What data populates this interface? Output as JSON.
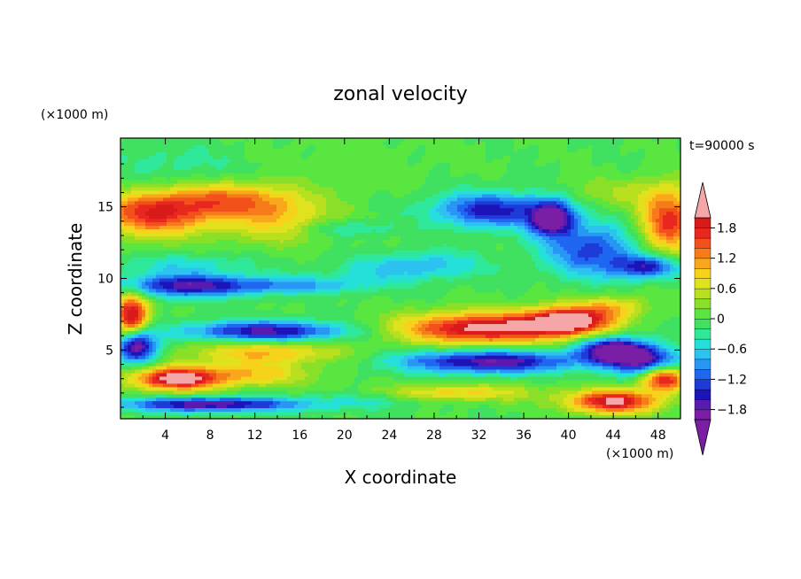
{
  "chart_data": {
    "type": "heatmap",
    "title": "zonal velocity",
    "time_label": "t=90000 s",
    "xlabel": "X coordinate",
    "ylabel": "Z coordinate",
    "x_unit_label": "(×1000 m)",
    "y_unit_label": "(×1000 m)",
    "xlim": [
      0,
      50
    ],
    "ylim": [
      0.2,
      19.8
    ],
    "x_ticks": [
      4,
      8,
      12,
      16,
      20,
      24,
      28,
      32,
      36,
      40,
      44,
      48
    ],
    "y_ticks": [
      5,
      10,
      15
    ],
    "colorbar": {
      "levels": [
        -2.0,
        -1.8,
        -1.6,
        -1.4,
        -1.2,
        -1.0,
        -0.8,
        -0.6,
        -0.4,
        -0.2,
        0.0,
        0.2,
        0.4,
        0.6,
        0.8,
        1.0,
        1.2,
        1.4,
        1.6,
        1.8,
        2.0
      ],
      "labels": [
        "1.8",
        "1.2",
        "0.6",
        "0",
        "−0.6",
        "−1.2",
        "−1.8"
      ],
      "label_values": [
        1.8,
        1.2,
        0.6,
        0,
        -0.6,
        -1.2,
        -1.8
      ],
      "colors": [
        "#7a1ea6",
        "#5a1ab0",
        "#1c14b8",
        "#1e3ad8",
        "#1f66f0",
        "#2896f5",
        "#2dc2f0",
        "#25e0d8",
        "#2fe89a",
        "#40e060",
        "#5ae640",
        "#8ae028",
        "#b8e01e",
        "#e0e21e",
        "#f6d21a",
        "#f8a81a",
        "#f67c1a",
        "#f2521a",
        "#e8281e",
        "#d81a1a"
      ],
      "over_color": "#f5a6a6",
      "under_color": "#7a1ea6"
    },
    "features": [
      {
        "x": 3,
        "z": 14.5,
        "sx": 5,
        "sz": 1.5,
        "v": 1.7
      },
      {
        "x": 10,
        "z": 15.5,
        "sx": 6,
        "sz": 1.2,
        "v": 1.2
      },
      {
        "x": 14,
        "z": 14,
        "sx": 5,
        "sz": 1.5,
        "v": 0.8
      },
      {
        "x": 20,
        "z": 13.5,
        "sx": 4,
        "sz": 0.6,
        "v": -0.5
      },
      {
        "x": 49,
        "z": 14,
        "sx": 2.5,
        "sz": 2.2,
        "v": 1.7
      },
      {
        "x": 45,
        "z": 16,
        "sx": 5,
        "sz": 1,
        "v": 0.4
      },
      {
        "x": 33,
        "z": 14.8,
        "sx": 5,
        "sz": 1.2,
        "v": -1.5
      },
      {
        "x": 38.5,
        "z": 14.2,
        "sx": 2,
        "sz": 1.2,
        "v": -2.1
      },
      {
        "x": 42,
        "z": 12,
        "sx": 4,
        "sz": 1.8,
        "v": -1.3
      },
      {
        "x": 47,
        "z": 10.8,
        "sx": 3,
        "sz": 0.8,
        "v": -1.5
      },
      {
        "x": 28,
        "z": 11,
        "sx": 5,
        "sz": 1,
        "v": -0.6
      },
      {
        "x": 23,
        "z": 10.5,
        "sx": 5,
        "sz": 1,
        "v": -0.4
      },
      {
        "x": 6,
        "z": 9.5,
        "sx": 6,
        "sz": 0.8,
        "v": -1.7
      },
      {
        "x": 16,
        "z": 9.5,
        "sx": 6,
        "sz": 0.6,
        "v": -0.8
      },
      {
        "x": 6,
        "z": 11,
        "sx": 6,
        "sz": 0.7,
        "v": -0.5
      },
      {
        "x": 1,
        "z": 7.5,
        "sx": 1.5,
        "sz": 1.5,
        "v": 2.1
      },
      {
        "x": 1.5,
        "z": 5.2,
        "sx": 1.8,
        "sz": 1.1,
        "v": -2.1
      },
      {
        "x": 13,
        "z": 6.3,
        "sx": 7,
        "sz": 0.7,
        "v": -1.7
      },
      {
        "x": 13,
        "z": 4.8,
        "sx": 7,
        "sz": 0.8,
        "v": 1.0
      },
      {
        "x": 32,
        "z": 6.5,
        "sx": 7,
        "sz": 1.1,
        "v": 2.1
      },
      {
        "x": 40,
        "z": 7,
        "sx": 4,
        "sz": 1,
        "v": 2.2
      },
      {
        "x": 44,
        "z": 8,
        "sx": 3,
        "sz": 0.8,
        "v": 0.8
      },
      {
        "x": 33,
        "z": 4.2,
        "sx": 8,
        "sz": 0.8,
        "v": -1.8
      },
      {
        "x": 44,
        "z": 5,
        "sx": 3,
        "sz": 0.9,
        "v": -2.1
      },
      {
        "x": 47,
        "z": 4.2,
        "sx": 3,
        "sz": 1,
        "v": -1.6
      },
      {
        "x": 48.5,
        "z": 3,
        "sx": 2,
        "sz": 0.9,
        "v": 2.0
      },
      {
        "x": 44,
        "z": 1.4,
        "sx": 4,
        "sz": 0.8,
        "v": 2.1
      },
      {
        "x": 5,
        "z": 3,
        "sx": 4,
        "sz": 0.8,
        "v": 2.2
      },
      {
        "x": 12,
        "z": 3.3,
        "sx": 5,
        "sz": 0.8,
        "v": 0.9
      },
      {
        "x": 30,
        "z": 2,
        "sx": 7,
        "sz": 0.6,
        "v": 0.9
      },
      {
        "x": 8,
        "z": 1.2,
        "sx": 8,
        "sz": 0.5,
        "v": -1.8
      },
      {
        "x": 22,
        "z": 1.5,
        "sx": 6,
        "sz": 0.6,
        "v": -0.4
      },
      {
        "x": 20,
        "z": 18,
        "sx": 9,
        "sz": 2.2,
        "v": 0.1
      },
      {
        "x": 5,
        "z": 18,
        "sx": 6,
        "sz": 1.5,
        "v": -0.3
      }
    ]
  }
}
